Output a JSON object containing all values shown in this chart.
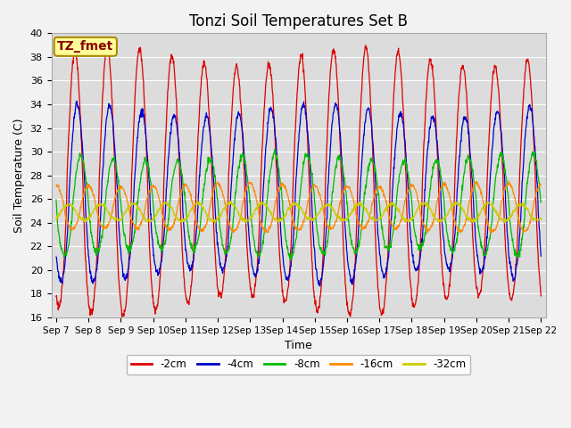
{
  "title": "Tonzi Soil Temperatures Set B",
  "xlabel": "Time",
  "ylabel": "Soil Temperature (C)",
  "ylim": [
    16,
    40
  ],
  "x_tick_labels": [
    "Sep 7",
    "Sep 8",
    "Sep 9",
    "Sep 10",
    "Sep 11",
    "Sep 12",
    "Sep 13",
    "Sep 14",
    "Sep 15",
    "Sep 16",
    "Sep 17",
    "Sep 18",
    "Sep 19",
    "Sep 20",
    "Sep 21",
    "Sep 22"
  ],
  "bg_color": "#dcdcdc",
  "fig_color": "#f2f2f2",
  "series": [
    {
      "label": "-2cm",
      "color": "#dd0000"
    },
    {
      "label": "-4cm",
      "color": "#0000cc"
    },
    {
      "label": "-8cm",
      "color": "#00bb00"
    },
    {
      "label": "-16cm",
      "color": "#ff8800"
    },
    {
      "label": "-32cm",
      "color": "#cccc00"
    }
  ],
  "series_params": [
    {
      "amp": 10.5,
      "mean": 27.5,
      "phase_lag": 0.0,
      "harmonics": [
        1.0,
        0.15,
        0.08
      ]
    },
    {
      "amp": 7.0,
      "mean": 26.5,
      "phase_lag": 0.07,
      "harmonics": [
        1.0,
        0.12,
        0.06
      ]
    },
    {
      "amp": 4.0,
      "mean": 25.5,
      "phase_lag": 0.18,
      "harmonics": [
        1.0,
        0.1,
        0.05
      ]
    },
    {
      "amp": 1.9,
      "mean": 25.3,
      "phase_lag": 0.42,
      "harmonics": [
        1.0,
        0.08,
        0.04
      ]
    },
    {
      "amp": 0.7,
      "mean": 24.9,
      "phase_lag": 0.8,
      "harmonics": [
        1.0,
        0.05,
        0.02
      ]
    }
  ],
  "legend_label": "TZ_fmet",
  "legend_text_color": "#880000",
  "legend_box_color": "#ffff99",
  "legend_border_color": "#aa8800",
  "title_fontsize": 12,
  "axis_label_fontsize": 9,
  "tick_fontsize": 7.5
}
